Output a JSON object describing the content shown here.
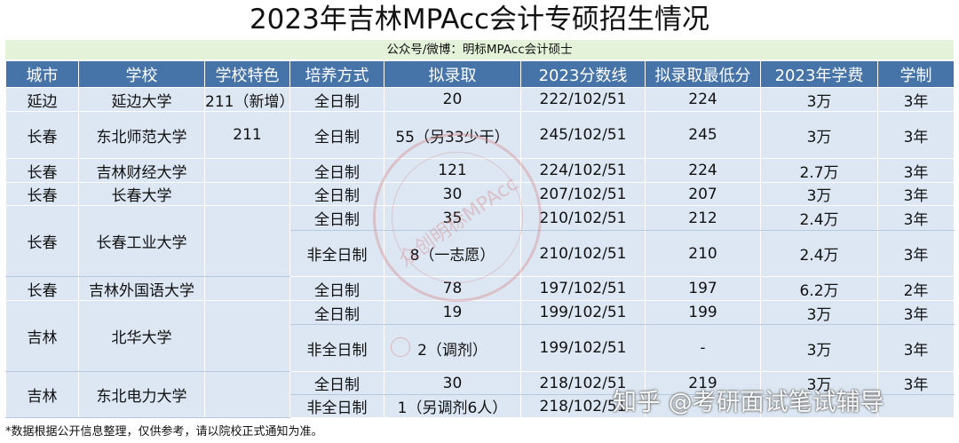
{
  "title": "2023年吉林MPAcc会计专硕招生情况",
  "subtitle": "公众号/微博：明标MPAcc会计硕士",
  "headers": [
    "城市",
    "学校",
    "学校特色",
    "培养方式",
    "拟录取",
    "2023分数线",
    "拟录取最低分",
    "2023年学费",
    "学制"
  ],
  "rows": [
    {
      "city": "延边",
      "school": "延边大学",
      "feature": "211（新增）",
      "mode": "全日制",
      "admit": "20",
      "line": "222/102/51",
      "min": "224",
      "fee": "3万",
      "years": "3年"
    },
    {
      "city": "长春",
      "school": "东北师范大学",
      "feature": "211",
      "mode": "全日制",
      "admit": "55（另33少干）",
      "line": "245/102/51",
      "min": "245",
      "fee": "3万",
      "years": "3年"
    },
    {
      "city": "长春",
      "school": "吉林财经大学",
      "feature": "",
      "mode": "全日制",
      "admit": "121",
      "line": "224/102/51",
      "min": "224",
      "fee": "2.7万",
      "years": "3年"
    },
    {
      "city": "长春",
      "school": "长春大学",
      "feature": "",
      "mode": "全日制",
      "admit": "30",
      "line": "207/102/51",
      "min": "207",
      "fee": "3万",
      "years": "3年"
    },
    {
      "city": "长春",
      "school": "长春工业大学",
      "feature": "",
      "mode": "全日制",
      "admit": "35",
      "line": "210/102/51",
      "min": "212",
      "fee": "2.4万",
      "years": "3年"
    },
    {
      "mode": "非全日制",
      "admit": "8（一志愿）",
      "line": "210/102/51",
      "min": "210",
      "fee": "2.4万",
      "years": "3年"
    },
    {
      "city": "长春",
      "school": "吉林外国语大学",
      "feature": "",
      "mode": "全日制",
      "admit": "78",
      "line": "197/102/51",
      "min": "197",
      "fee": "6.2万",
      "years": "2年"
    },
    {
      "city": "吉林",
      "school": "北华大学",
      "feature": "",
      "mode": "全日制",
      "admit": "19",
      "line": "199/102/51",
      "min": "199",
      "fee": "3万",
      "years": "3年"
    },
    {
      "mode": "非全日制",
      "admit": "2（调剂）",
      "line": "199/102/51",
      "min": "-",
      "fee": "3万",
      "years": "3年"
    },
    {
      "city": "吉林",
      "school": "东北电力大学",
      "feature": "",
      "mode": "全日制",
      "admit": "30",
      "line": "218/102/51",
      "min": "219",
      "fee": "3万",
      "years": "3年"
    },
    {
      "mode": "非全日制",
      "admit": "1（另调剂6人）",
      "line": "218/102/51",
      "min": "",
      "fee": "",
      "years": ""
    }
  ],
  "footnote": "*数据根据公开信息整理，仅供参考，请以院校正式通知为准。",
  "watermark": {
    "stamp_text": "众创明标MPAcc",
    "zhihu": "知乎 @考研面试笔试辅导"
  },
  "colors": {
    "header_bg": "#4673a8",
    "row_blue": "#dce7f3",
    "subtitle_bg": "#e4f2da"
  }
}
